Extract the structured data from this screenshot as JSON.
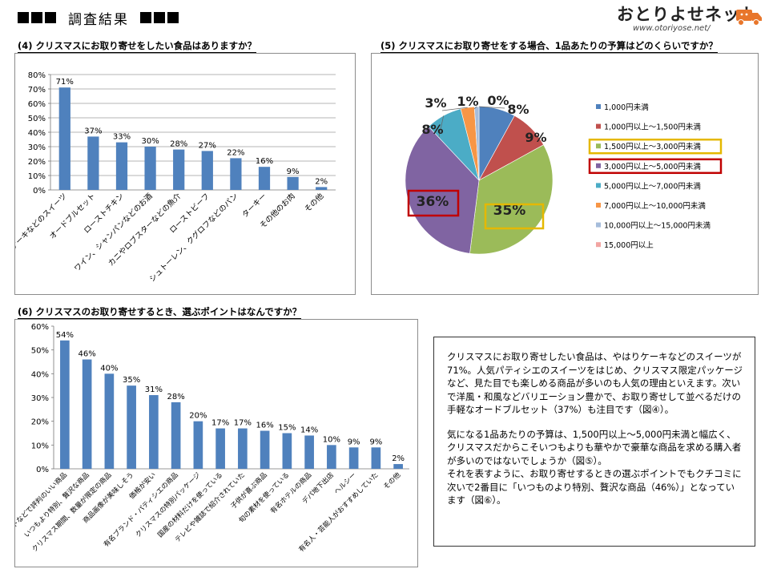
{
  "header": {
    "title": "調査結果"
  },
  "logo": {
    "name": "おとりよせネット",
    "url": "www.otoriyose.net/"
  },
  "colors": {
    "bar": "#4f81bd",
    "highlight_yellow": "#e5b800",
    "highlight_red": "#c00000"
  },
  "chart_data": [
    {
      "id": "chart4",
      "type": "bar",
      "title": "(4) クリスマスにお取り寄せをしたい食品はありますか？",
      "categories": [
        "ケーキなどのスイーツ",
        "オードブルセット",
        "ローストチキン",
        "ワイン、シャンパンなどのお酒",
        "カニやロブスターなどの魚介",
        "ローストビーフ",
        "シュトーレン、クグロフなどのパン",
        "ターキー",
        "その他のお肉",
        "その他"
      ],
      "values": [
        71,
        37,
        33,
        30,
        28,
        27,
        22,
        16,
        9,
        2
      ],
      "value_labels": [
        "71%",
        "37%",
        "33%",
        "30%",
        "28%",
        "27%",
        "22%",
        "16%",
        "9%",
        "2%"
      ],
      "y_ticks": [
        "0%",
        "10%",
        "20%",
        "30%",
        "40%",
        "50%",
        "60%",
        "70%",
        "80%"
      ],
      "ylim": [
        0,
        80
      ],
      "grid": true
    },
    {
      "id": "chart5",
      "type": "pie",
      "title": "(5) クリスマスにお取り寄せをする場合、1品あたりの予算はどのくらいですか？",
      "categories": [
        "1,000円未満",
        "1,000円以上～1,500円未満",
        "1,500円以上～3,000円未満",
        "3,000円以上～5,000円未満",
        "5,000円以上～7,000円未満",
        "7,000円以上～10,000円未満",
        "10,000円以上～15,000円未満",
        "15,000円以上"
      ],
      "values": [
        8,
        9,
        35,
        36,
        8,
        3,
        1,
        0
      ],
      "value_labels": [
        "8%",
        "9%",
        "35%",
        "36%",
        "8%",
        "3%",
        "1%",
        "0%"
      ],
      "colors": [
        "#4f81bd",
        "#c0504d",
        "#9bbb59",
        "#8064a2",
        "#4bacc6",
        "#f79646",
        "#a6bddb",
        "#f2a5a2"
      ],
      "highlighted": {
        "yellow": 2,
        "red": 3
      },
      "legend": "right"
    },
    {
      "id": "chart6",
      "type": "bar",
      "title": "(6) クリスマスのお取り寄せするとき、選ぶポイントはなんですか？",
      "categories": [
        "クチコミサイトなどで評判のいい商品",
        "いつもより特別、贅沢な商品",
        "クリスマス期間、数量が限定の商品",
        "商品画像が美味しそう",
        "価格が安い",
        "有名ブランド・パティシエの商品",
        "クリスマスの特別パッケージ",
        "国産の材料だけを使っている",
        "テレビや雑誌で紹介されていた",
        "子供が喜ぶ商品",
        "旬の素材を使っている",
        "有名ホテルの商品",
        "デパ地下出店",
        "ヘルシー",
        "有名人・芸能人がおすすめしていた",
        "その他"
      ],
      "values": [
        54,
        46,
        40,
        35,
        31,
        28,
        20,
        17,
        17,
        16,
        15,
        14,
        10,
        9,
        9,
        2
      ],
      "value_labels": [
        "54%",
        "46%",
        "40%",
        "35%",
        "31%",
        "28%",
        "20%",
        "17%",
        "17%",
        "16%",
        "15%",
        "14%",
        "10%",
        "9%",
        "9%",
        "2%"
      ],
      "y_ticks": [
        "0%",
        "10%",
        "20%",
        "30%",
        "40%",
        "50%",
        "60%"
      ],
      "ylim": [
        0,
        60
      ],
      "grid": false
    }
  ],
  "summary": {
    "p1": "クリスマスにお取り寄せしたい食品は、やはりケーキなどのスイーツが71%。人気パティシエのスイーツをはじめ、クリスマス限定パッケージなど、見た目でも楽しめる商品が多いのも人気の理由といえます。次いで洋風・和風などバリエーション豊かで、お取り寄せして並べるだけの手軽なオードブルセット（37%）も注目です（図④）。",
    "p2": "気になる1品あたりの予算は、1,500円以上～5,000円未満と幅広く、クリスマスだからこそいつもよりも華やかで豪華な商品を求める購入者が多いのではないでしょうか（図⑤）。\nそれを表すように、お取り寄せするときの選ぶポイントでもクチコミに次いで2番目に「いつものより特別、贅沢な商品（46%）」となっています（図⑥）。"
  }
}
